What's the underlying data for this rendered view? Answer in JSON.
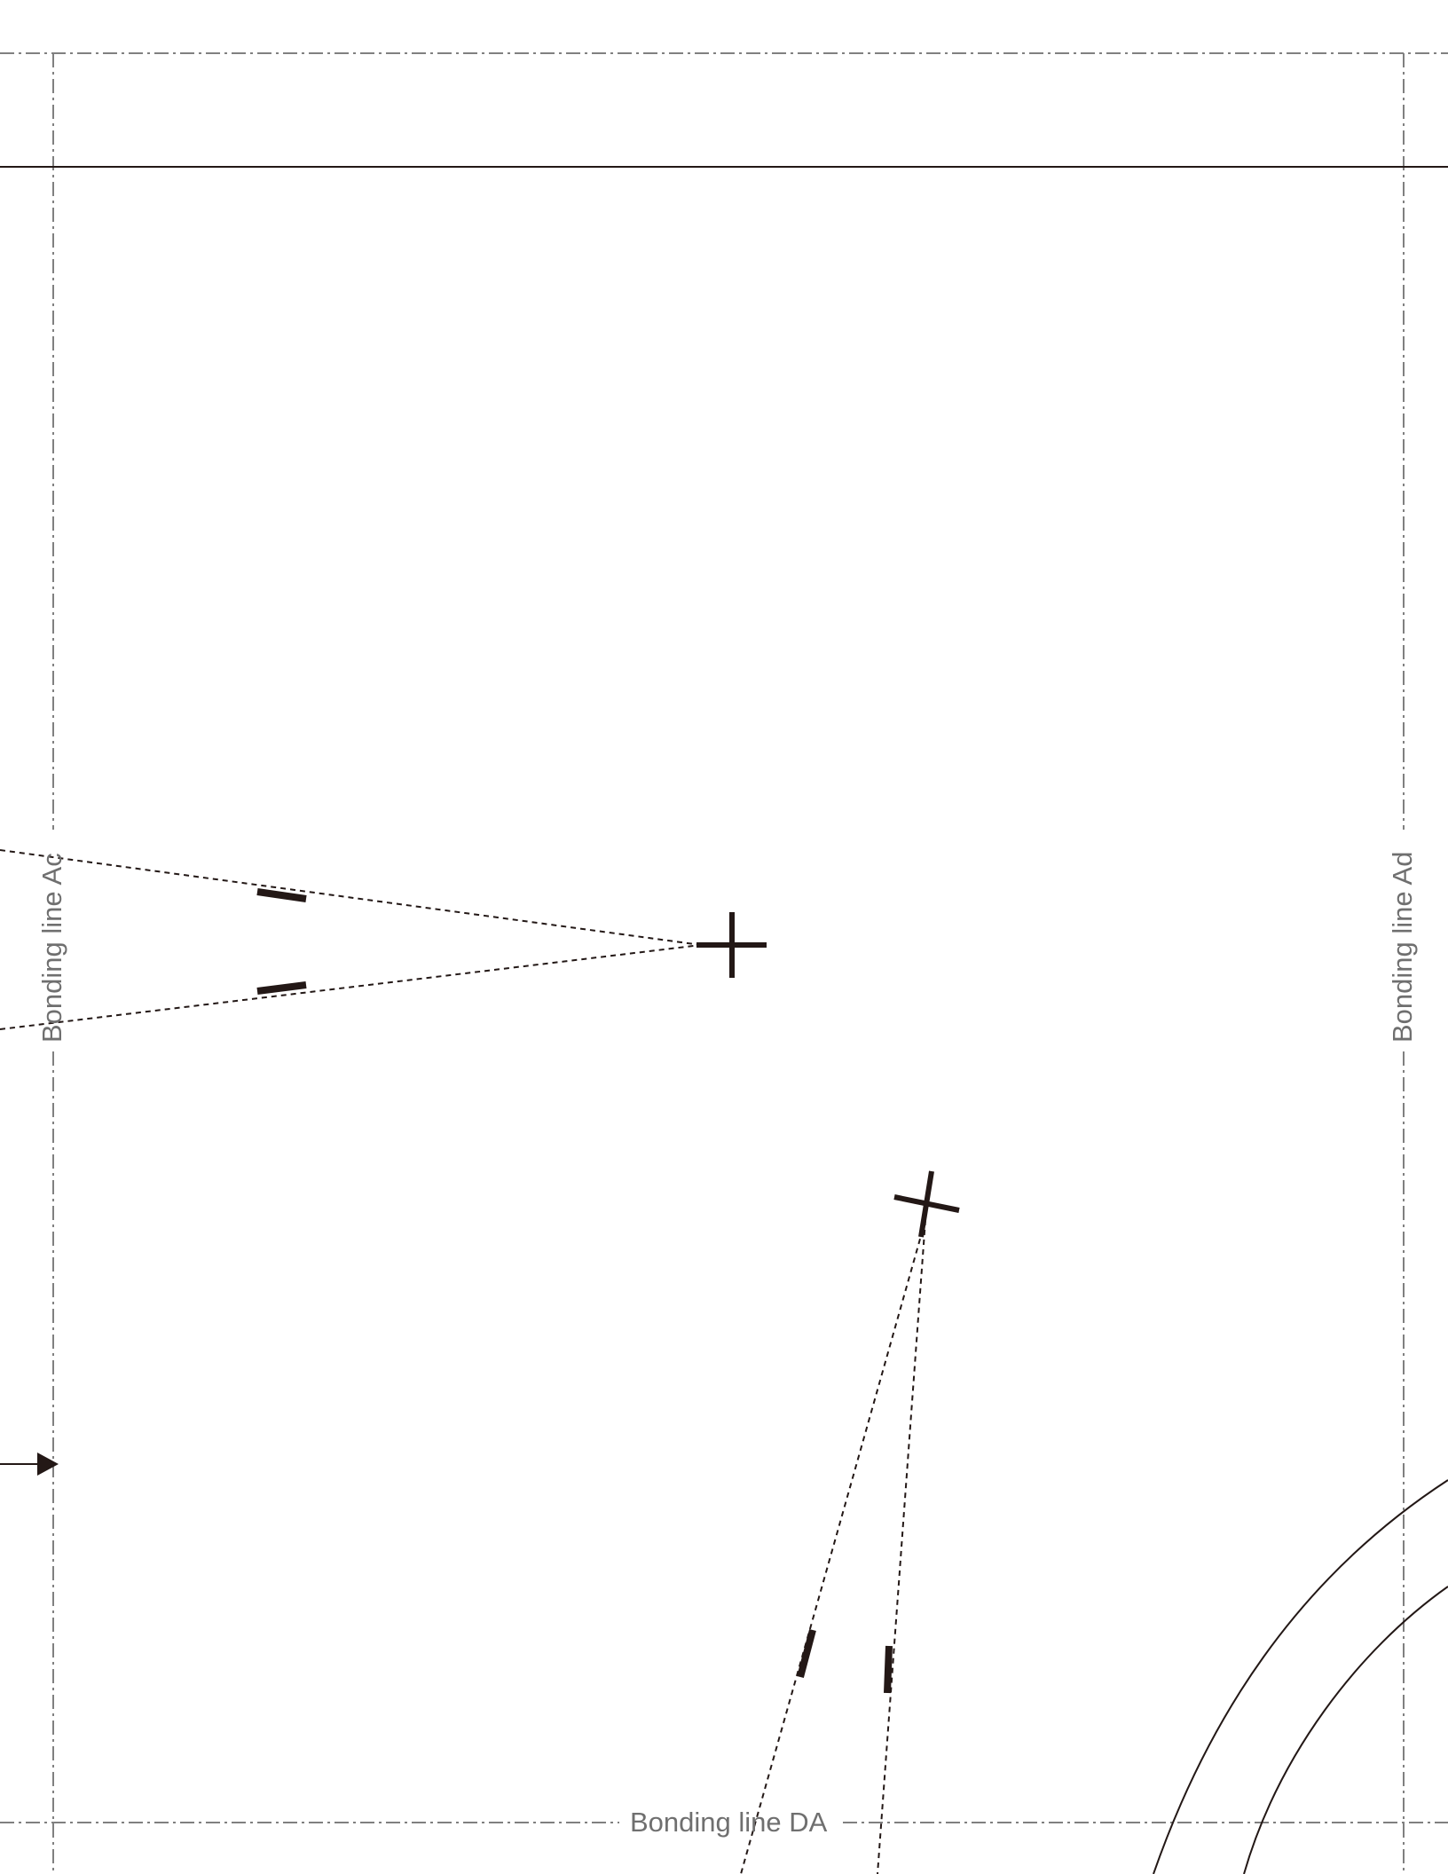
{
  "labels": {
    "bonding_line_left": "Bonding line Ac",
    "bonding_line_right": "Bonding line Ad",
    "bonding_line_bottom": "Bonding line DA"
  },
  "colors": {
    "ink": "#231816",
    "bonding_line": "#808080",
    "label_text": "#6f6f6f",
    "background": "#ffffff"
  }
}
